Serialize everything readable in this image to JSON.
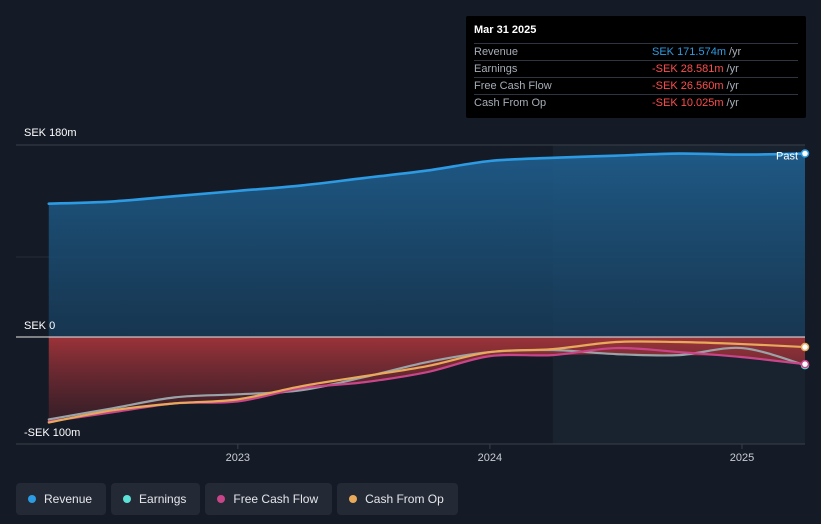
{
  "tooltip": {
    "date": "Mar 31 2025",
    "rows": [
      {
        "label": "Revenue",
        "value": "SEK 171.574m",
        "unit": "/yr",
        "color": "#2d9be3"
      },
      {
        "label": "Earnings",
        "value": "-SEK 28.581m",
        "unit": "/yr",
        "color": "#ff4d4d"
      },
      {
        "label": "Free Cash Flow",
        "value": "-SEK 26.560m",
        "unit": "/yr",
        "color": "#ff4d4d"
      },
      {
        "label": "Cash From Op",
        "value": "-SEK 10.025m",
        "unit": "/yr",
        "color": "#ff4d4d"
      }
    ]
  },
  "legend": [
    {
      "label": "Revenue",
      "color": "#2d9be3"
    },
    {
      "label": "Earnings",
      "color": "#5de0d6"
    },
    {
      "label": "Free Cash Flow",
      "color": "#c9458a"
    },
    {
      "label": "Cash From Op",
      "color": "#e8a95b"
    }
  ],
  "chart_data": {
    "type": "area",
    "y_tick_labels": [
      "SEK 180m",
      "SEK 0",
      "-SEK 100m"
    ],
    "y_ticks": [
      180,
      0,
      -100
    ],
    "ylim": [
      -100,
      180
    ],
    "x_tick_labels": [
      "2023",
      "2024",
      "2025"
    ],
    "x_ticks": [
      2023.0,
      2024.0,
      2025.0
    ],
    "xlim": [
      2022.12,
      2025.25
    ],
    "past_label": "Past",
    "past_start": 2024.25,
    "series": [
      {
        "name": "Revenue",
        "color": "#2d9be3",
        "x": [
          2022.25,
          2022.5,
          2022.75,
          2023.0,
          2023.25,
          2023.5,
          2023.75,
          2024.0,
          2024.25,
          2024.5,
          2024.75,
          2025.0,
          2025.25
        ],
        "y": [
          125,
          127,
          132,
          137,
          142,
          149,
          156,
          165,
          168,
          170,
          172,
          171,
          172
        ]
      },
      {
        "name": "Earnings",
        "color": "#5de0d6",
        "x": [
          2022.25,
          2022.5,
          2022.75,
          2023.0,
          2023.25,
          2023.5,
          2023.75,
          2024.0,
          2024.25,
          2024.5,
          2024.75,
          2025.0,
          2025.25
        ],
        "y": [
          -82,
          -71,
          -60,
          -57,
          -53,
          -40,
          -25,
          -15,
          -13,
          -17,
          -18,
          -11,
          -28
        ]
      },
      {
        "name": "Free Cash Flow",
        "color": "#c9458a",
        "x": [
          2022.25,
          2022.5,
          2022.75,
          2023.0,
          2023.25,
          2023.5,
          2023.75,
          2024.0,
          2024.25,
          2024.5,
          2024.75,
          2025.0,
          2025.25
        ],
        "y": [
          -84,
          -75,
          -66,
          -64,
          -51,
          -45,
          -35,
          -19,
          -18,
          -11,
          -15,
          -20,
          -27
        ]
      },
      {
        "name": "Cash From Op",
        "color": "#e8a95b",
        "x": [
          2022.25,
          2022.5,
          2022.75,
          2023.0,
          2023.25,
          2023.5,
          2023.75,
          2024.0,
          2024.25,
          2024.5,
          2024.75,
          2025.0,
          2025.25
        ],
        "y": [
          -85,
          -73,
          -66,
          -62,
          -49,
          -39,
          -29,
          -15,
          -12,
          -5,
          -5,
          -7,
          -10
        ]
      }
    ]
  }
}
